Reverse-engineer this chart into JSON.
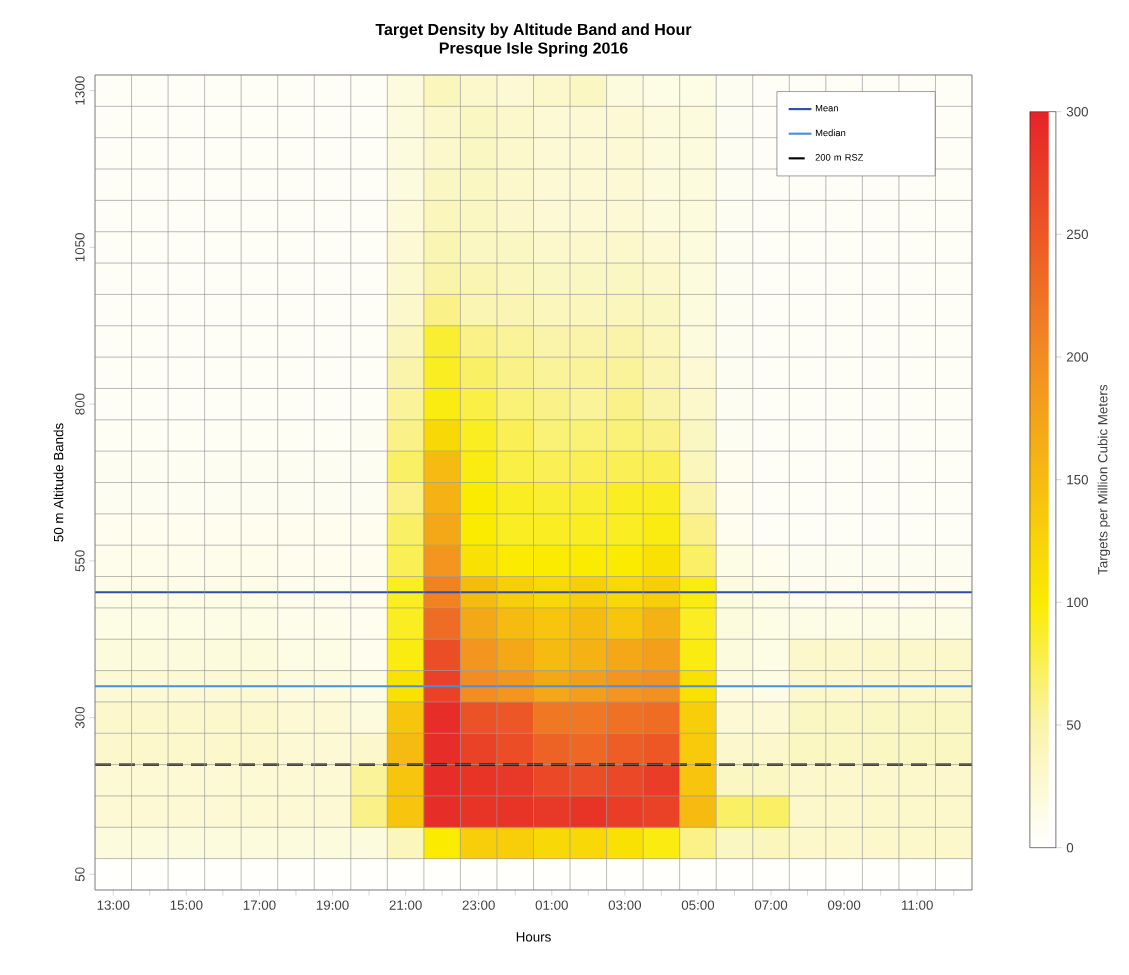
{
  "chart_data": {
    "type": "heatmap",
    "title": "Target Density by Altitude Band and Hour",
    "subtitle": "Presque Isle Spring 2016",
    "xlabel": "Hours",
    "ylabel": "50 m Altitude Bands",
    "clabel": "Targets per Million Cubic Meters",
    "categories": [
      "13:00",
      null,
      "15:00",
      null,
      "17:00",
      null,
      "19:00",
      null,
      "21:00",
      null,
      "23:00",
      null,
      "01:00",
      null,
      "03:00",
      null,
      "05:00",
      null,
      "07:00",
      null,
      "09:00",
      null,
      "11:00",
      null
    ],
    "ylim": [
      25,
      1325
    ],
    "yticks": [
      50,
      300,
      550,
      800,
      1050,
      1300
    ],
    "clim": [
      0,
      300
    ],
    "cticks": [
      0,
      50,
      100,
      150,
      200,
      250,
      300
    ],
    "cells": [
      [
        5,
        5,
        5,
        5,
        5,
        5,
        5,
        5,
        20,
        40,
        30,
        25,
        30,
        35,
        20,
        15,
        15,
        8,
        5,
        5,
        5,
        5,
        5,
        5
      ],
      [
        5,
        5,
        5,
        5,
        5,
        5,
        5,
        5,
        20,
        30,
        35,
        30,
        25,
        25,
        25,
        20,
        20,
        8,
        5,
        null,
        null,
        null,
        null,
        5
      ],
      [
        5,
        5,
        5,
        5,
        5,
        5,
        5,
        5,
        20,
        30,
        35,
        30,
        25,
        25,
        25,
        20,
        20,
        8,
        5,
        null,
        null,
        null,
        null,
        5
      ],
      [
        5,
        5,
        5,
        5,
        5,
        5,
        5,
        5,
        20,
        35,
        35,
        30,
        25,
        25,
        25,
        20,
        20,
        8,
        5,
        5,
        5,
        5,
        5,
        5
      ],
      [
        5,
        5,
        5,
        5,
        5,
        5,
        5,
        5,
        22,
        40,
        35,
        30,
        25,
        25,
        25,
        20,
        20,
        8,
        5,
        5,
        5,
        5,
        5,
        5
      ],
      [
        5,
        5,
        5,
        5,
        5,
        5,
        5,
        5,
        25,
        45,
        35,
        35,
        30,
        30,
        30,
        25,
        20,
        8,
        5,
        5,
        5,
        5,
        5,
        5
      ],
      [
        5,
        5,
        5,
        5,
        5,
        5,
        5,
        5,
        28,
        50,
        45,
        40,
        35,
        35,
        35,
        30,
        20,
        8,
        5,
        5,
        5,
        5,
        5,
        5
      ],
      [
        5,
        5,
        5,
        5,
        5,
        5,
        5,
        5,
        30,
        60,
        45,
        45,
        40,
        40,
        40,
        35,
        20,
        8,
        5,
        5,
        5,
        5,
        5,
        5
      ],
      [
        5,
        5,
        5,
        5,
        5,
        5,
        5,
        5,
        40,
        85,
        60,
        55,
        50,
        50,
        50,
        40,
        20,
        8,
        5,
        5,
        5,
        5,
        5,
        5
      ],
      [
        5,
        5,
        5,
        5,
        5,
        5,
        5,
        5,
        50,
        90,
        70,
        60,
        55,
        55,
        55,
        45,
        25,
        8,
        5,
        5,
        5,
        5,
        5,
        5
      ],
      [
        5,
        5,
        5,
        5,
        5,
        5,
        5,
        5,
        55,
        95,
        80,
        65,
        60,
        55,
        60,
        50,
        30,
        8,
        5,
        5,
        5,
        5,
        5,
        5
      ],
      [
        6,
        6,
        6,
        6,
        6,
        6,
        6,
        8,
        60,
        120,
        90,
        75,
        65,
        65,
        65,
        60,
        35,
        8,
        5,
        5,
        5,
        5,
        5,
        5
      ],
      [
        8,
        8,
        8,
        8,
        8,
        8,
        8,
        8,
        70,
        150,
        95,
        80,
        75,
        75,
        75,
        75,
        40,
        10,
        5,
        5,
        5,
        5,
        5,
        5
      ],
      [
        8,
        8,
        8,
        8,
        8,
        8,
        8,
        8,
        60,
        160,
        100,
        90,
        85,
        85,
        90,
        90,
        50,
        10,
        5,
        5,
        5,
        5,
        5,
        5
      ],
      [
        10,
        10,
        10,
        10,
        10,
        10,
        10,
        10,
        70,
        170,
        100,
        90,
        90,
        90,
        90,
        95,
        60,
        10,
        5,
        5,
        5,
        5,
        5,
        5
      ],
      [
        12,
        12,
        12,
        12,
        12,
        10,
        10,
        10,
        75,
        190,
        110,
        100,
        100,
        100,
        100,
        110,
        70,
        15,
        10,
        8,
        8,
        8,
        8,
        8
      ],
      [
        15,
        15,
        15,
        15,
        15,
        12,
        12,
        10,
        90,
        210,
        150,
        130,
        120,
        130,
        120,
        130,
        95,
        20,
        15,
        10,
        10,
        10,
        10,
        10
      ],
      [
        15,
        15,
        15,
        15,
        15,
        12,
        12,
        10,
        90,
        230,
        170,
        150,
        140,
        150,
        140,
        160,
        90,
        20,
        15,
        15,
        15,
        15,
        15,
        15
      ],
      [
        20,
        20,
        20,
        20,
        20,
        15,
        15,
        10,
        95,
        260,
        190,
        170,
        150,
        160,
        170,
        180,
        95,
        20,
        15,
        30,
        30,
        30,
        30,
        30
      ],
      [
        25,
        25,
        25,
        25,
        25,
        20,
        20,
        15,
        110,
        270,
        200,
        190,
        170,
        180,
        190,
        195,
        110,
        20,
        15,
        30,
        30,
        30,
        30,
        30
      ],
      [
        30,
        30,
        30,
        30,
        30,
        25,
        25,
        20,
        140,
        290,
        255,
        250,
        220,
        220,
        225,
        230,
        130,
        25,
        25,
        35,
        35,
        35,
        35,
        35
      ],
      [
        30,
        30,
        30,
        30,
        30,
        25,
        25,
        30,
        150,
        290,
        270,
        260,
        240,
        235,
        245,
        250,
        135,
        30,
        30,
        35,
        35,
        35,
        35,
        35
      ],
      [
        25,
        25,
        25,
        25,
        25,
        25,
        25,
        55,
        140,
        290,
        285,
        280,
        265,
        260,
        265,
        275,
        140,
        35,
        35,
        30,
        30,
        30,
        30,
        30
      ],
      [
        25,
        25,
        25,
        25,
        25,
        25,
        25,
        60,
        140,
        290,
        285,
        285,
        280,
        285,
        275,
        270,
        150,
        70,
        70,
        30,
        30,
        30,
        30,
        30
      ],
      [
        20,
        20,
        20,
        20,
        20,
        20,
        20,
        20,
        40,
        100,
        130,
        130,
        120,
        120,
        110,
        95,
        60,
        35,
        40,
        30,
        30,
        30,
        30,
        30
      ],
      [
        2,
        2,
        2,
        2,
        2,
        2,
        2,
        2,
        2,
        2,
        2,
        2,
        2,
        2,
        2,
        2,
        2,
        2,
        2,
        2,
        2,
        2,
        2,
        2
      ]
    ],
    "ref_lines": [
      {
        "axis": "y",
        "value": 500,
        "label": "Mean",
        "color": "#2f4ea8"
      },
      {
        "axis": "y",
        "value": 350,
        "label": "Median",
        "color": "#4a90d9"
      },
      {
        "axis": "y",
        "value": 225,
        "label": "200 m RSZ",
        "color": "#000000",
        "line_style": "dashed"
      }
    ],
    "legend": "top right",
    "grid": true
  }
}
